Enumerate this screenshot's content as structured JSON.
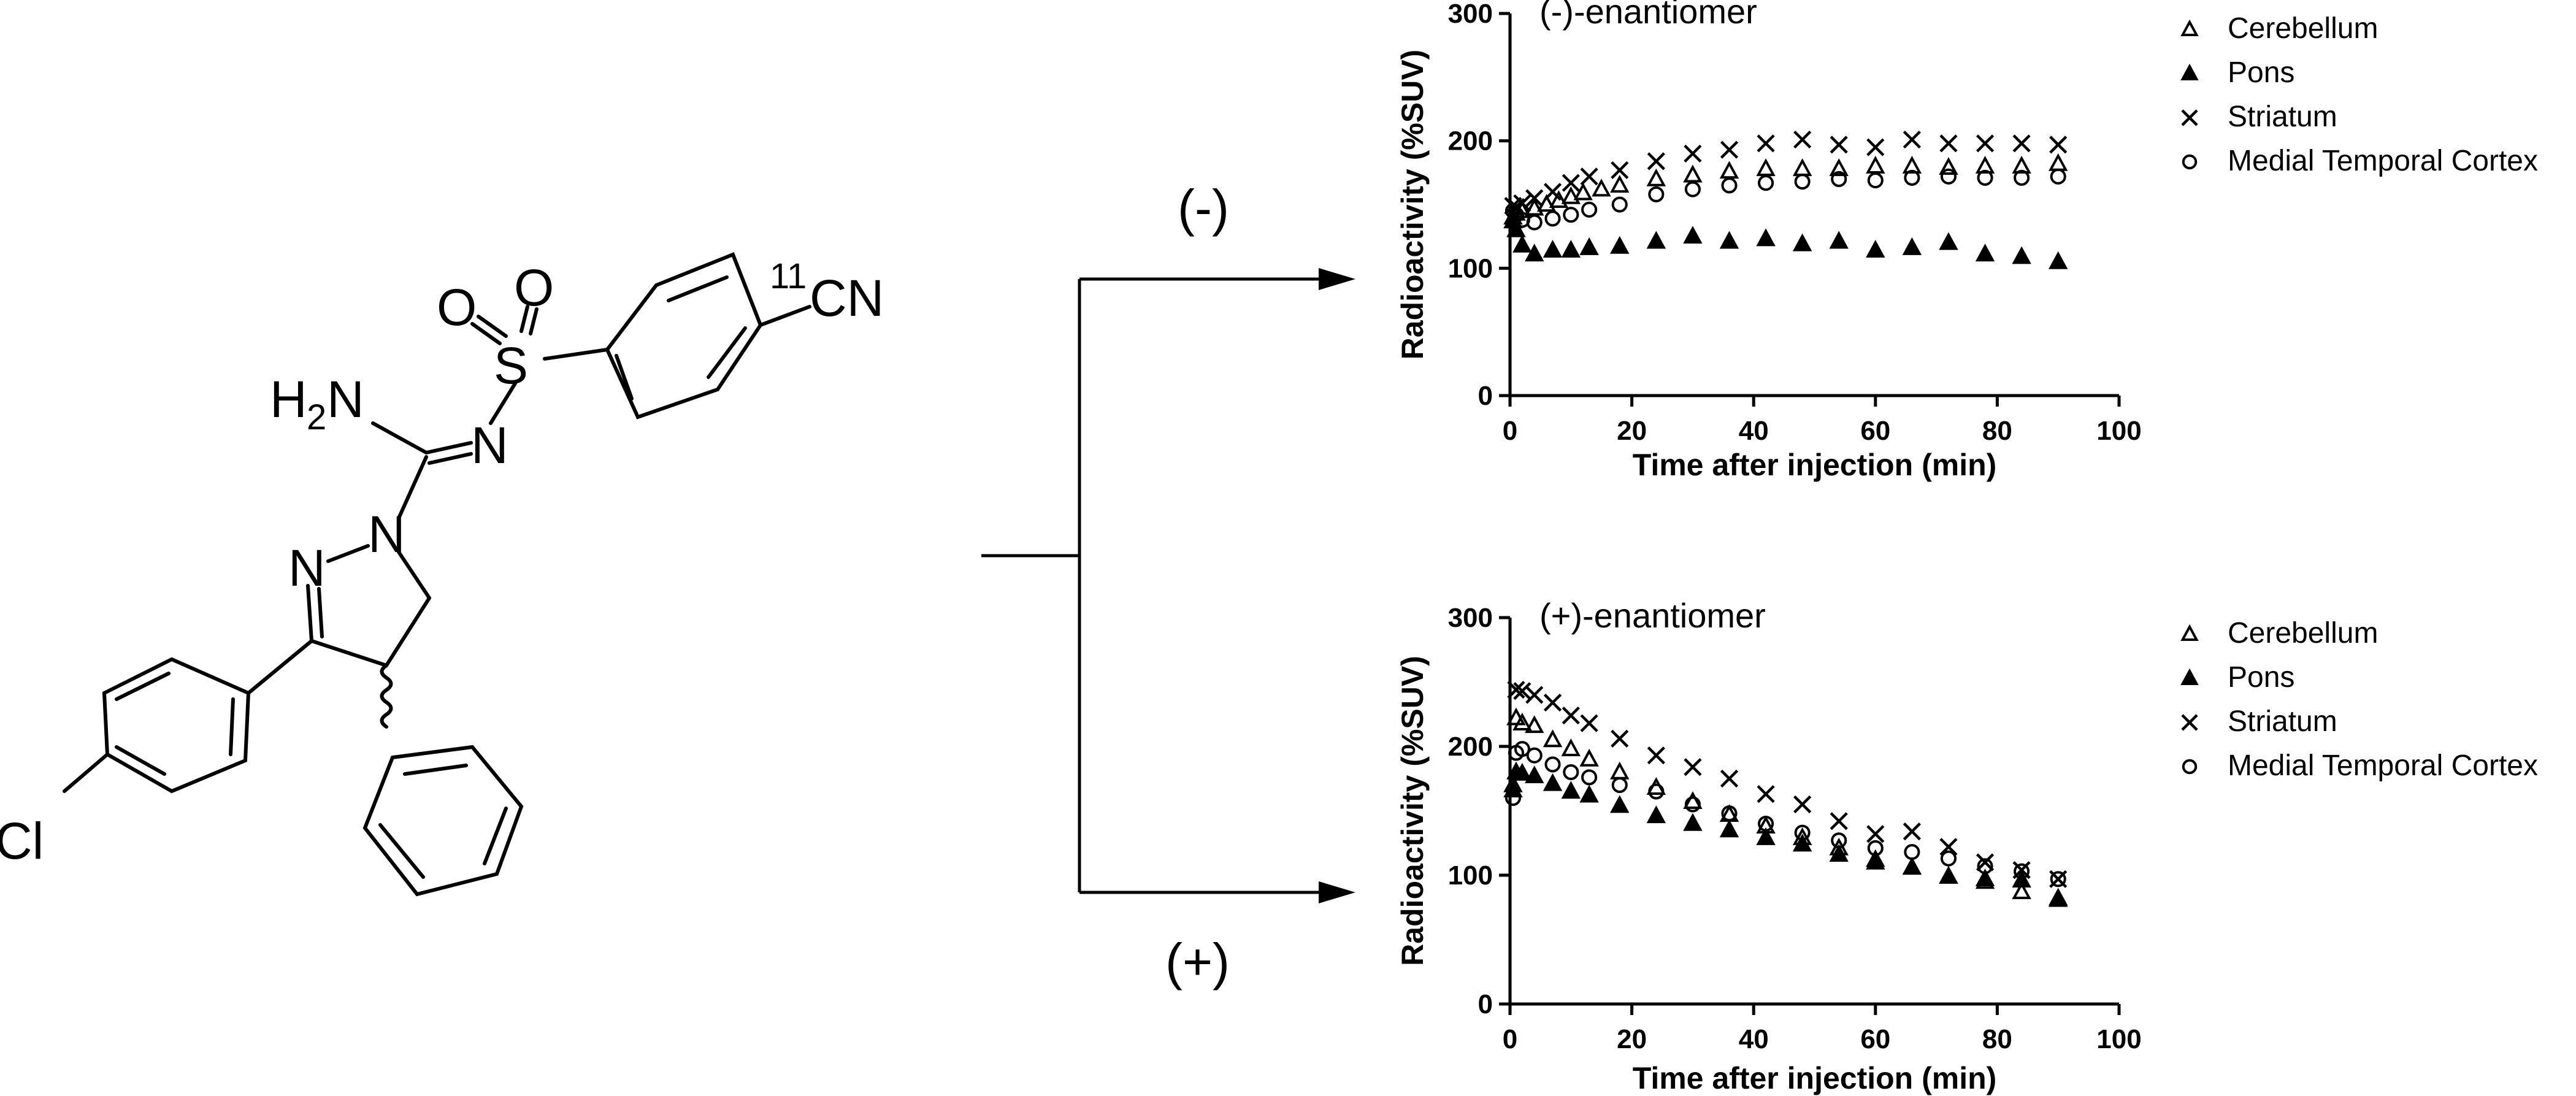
{
  "molecule": {
    "atoms": {
      "o1": "O",
      "o2": "O",
      "s": "S",
      "iso_mass": "11",
      "cn": "CN",
      "amine_h": "H",
      "amine_sub": "2",
      "amine_n": "N",
      "imine_n": "N",
      "n_ring1": "N",
      "n_ring2": "N",
      "cl": "Cl"
    }
  },
  "scheme": {
    "branch_top_label": "(-)",
    "branch_bottom_label": "(+)"
  },
  "chart_data": [
    {
      "type": "scatter",
      "title": "(-)-enantiomer",
      "xlabel": "Time after injection (min)",
      "ylabel": "Radioactivity (%SUV)",
      "xlim": [
        0,
        100
      ],
      "ylim": [
        0,
        300
      ],
      "xticks": [
        0,
        20,
        40,
        60,
        80,
        100
      ],
      "yticks": [
        0,
        100,
        200,
        300
      ],
      "legend_position": "right",
      "series": [
        {
          "name": "Cerebellum",
          "marker": "triangle-open",
          "x": [
            0.5,
            1,
            2,
            4,
            6,
            8,
            10,
            12,
            15,
            18,
            24,
            30,
            36,
            42,
            48,
            54,
            60,
            66,
            72,
            78,
            84,
            90
          ],
          "y": [
            140,
            143,
            145,
            147,
            150,
            153,
            156,
            159,
            162,
            165,
            170,
            173,
            176,
            178,
            178,
            178,
            180,
            180,
            179,
            180,
            180,
            182
          ]
        },
        {
          "name": "Pons",
          "marker": "triangle-filled",
          "x": [
            0.5,
            1,
            2,
            4,
            7,
            10,
            13,
            18,
            24,
            30,
            36,
            42,
            48,
            54,
            60,
            66,
            72,
            78,
            84,
            90
          ],
          "y": [
            137,
            130,
            118,
            111,
            114,
            114,
            116,
            117,
            121,
            125,
            121,
            123,
            119,
            121,
            114,
            116,
            120,
            111,
            109,
            105
          ]
        },
        {
          "name": "Striatum",
          "marker": "cross",
          "x": [
            0.5,
            1,
            2,
            4,
            7,
            10,
            13,
            18,
            24,
            30,
            36,
            42,
            48,
            54,
            60,
            66,
            72,
            78,
            84,
            90
          ],
          "y": [
            149,
            148,
            151,
            155,
            160,
            167,
            172,
            177,
            184,
            190,
            193,
            198,
            201,
            197,
            195,
            201,
            198,
            198,
            198,
            197
          ]
        },
        {
          "name": "Medial Temporal Cortex",
          "marker": "circle-open",
          "x": [
            0.5,
            1,
            2,
            4,
            7,
            10,
            13,
            18,
            24,
            30,
            36,
            42,
            48,
            54,
            60,
            66,
            72,
            78,
            84,
            90
          ],
          "y": [
            145,
            142,
            138,
            136,
            139,
            142,
            146,
            150,
            158,
            162,
            165,
            167,
            168,
            170,
            169,
            171,
            172,
            171,
            171,
            172
          ]
        }
      ]
    },
    {
      "type": "scatter",
      "title": "(+)-enantiomer",
      "xlabel": "Time after injection (min)",
      "ylabel": "Radioactivity (%SUV)",
      "xlim": [
        0,
        100
      ],
      "ylim": [
        0,
        300
      ],
      "xticks": [
        0,
        20,
        40,
        60,
        80,
        100
      ],
      "yticks": [
        0,
        100,
        200,
        300
      ],
      "legend_position": "right",
      "series": [
        {
          "name": "Cerebellum",
          "marker": "triangle-open",
          "x": [
            0.5,
            1,
            2,
            4,
            7,
            10,
            13,
            18,
            24,
            30,
            36,
            42,
            48,
            54,
            60,
            66,
            72,
            78,
            84,
            90
          ],
          "y": [
            170,
            222,
            218,
            216,
            205,
            198,
            190,
            180,
            168,
            157,
            147,
            138,
            129,
            121,
            112,
            106,
            99,
            95,
            87,
            82
          ]
        },
        {
          "name": "Pons",
          "marker": "triangle-filled",
          "x": [
            0.5,
            1,
            2,
            4,
            7,
            10,
            13,
            18,
            24,
            30,
            36,
            42,
            48,
            54,
            60,
            66,
            72,
            78,
            84,
            90
          ],
          "y": [
            166,
            180,
            179,
            177,
            171,
            165,
            162,
            154,
            146,
            140,
            135,
            129,
            124,
            116,
            110,
            106,
            99,
            97,
            96,
            81
          ]
        },
        {
          "name": "Striatum",
          "marker": "cross",
          "x": [
            1,
            2,
            4,
            7,
            10,
            13,
            18,
            24,
            30,
            36,
            42,
            48,
            54,
            60,
            66,
            72,
            78,
            84,
            90
          ],
          "y": [
            244,
            243,
            240,
            234,
            224,
            218,
            206,
            193,
            184,
            175,
            163,
            155,
            142,
            132,
            134,
            122,
            110,
            104,
            97
          ]
        },
        {
          "name": "Medial Temporal Cortex",
          "marker": "circle-open",
          "x": [
            0.5,
            1,
            2,
            4,
            7,
            10,
            13,
            18,
            24,
            30,
            36,
            42,
            48,
            54,
            60,
            66,
            72,
            78,
            84,
            90
          ],
          "y": [
            160,
            195,
            198,
            193,
            186,
            180,
            176,
            170,
            165,
            155,
            148,
            140,
            133,
            127,
            121,
            118,
            113,
            107,
            103,
            97
          ]
        }
      ]
    }
  ]
}
